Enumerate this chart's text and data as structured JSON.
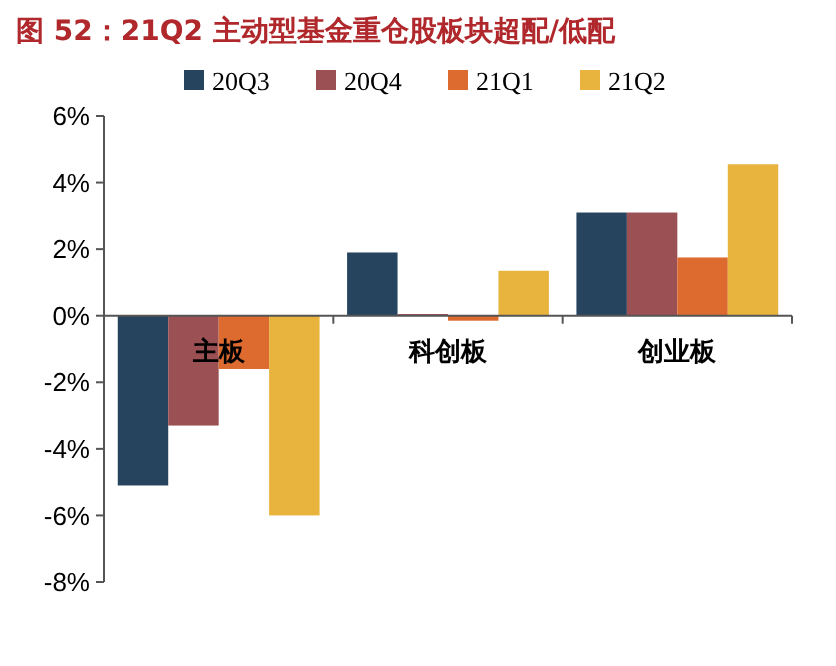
{
  "chart_data": {
    "type": "bar",
    "title": "图 52：21Q2 主动型基金重仓股板块超配/低配",
    "categories": [
      "主板",
      "科创板",
      "创业板"
    ],
    "series": [
      {
        "name": "20Q3",
        "color": "#26445e",
        "values": [
          -5.1,
          1.9,
          3.1
        ]
      },
      {
        "name": "20Q4",
        "color": "#9b5054",
        "values": [
          -3.3,
          0.05,
          3.1
        ]
      },
      {
        "name": "21Q1",
        "color": "#dd6a2e",
        "values": [
          -1.6,
          -0.15,
          1.75
        ]
      },
      {
        "name": "21Q2",
        "color": "#e8b43e",
        "values": [
          -6.0,
          1.35,
          4.55
        ]
      }
    ],
    "ylim": [
      -8,
      6
    ],
    "yticks": [
      {
        "value": -8,
        "label": "-8%"
      },
      {
        "value": -6,
        "label": "-6%"
      },
      {
        "value": -4,
        "label": "-4%"
      },
      {
        "value": -2,
        "label": "-2%"
      },
      {
        "value": 0,
        "label": "0%"
      },
      {
        "value": 2,
        "label": "2%"
      },
      {
        "value": 4,
        "label": "4%"
      },
      {
        "value": 6,
        "label": "6%"
      }
    ],
    "grid": false,
    "legend": "top"
  }
}
